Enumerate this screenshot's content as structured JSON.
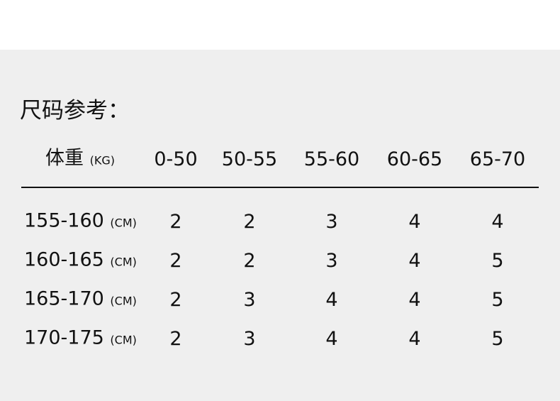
{
  "title": "尺码参考：",
  "header": {
    "label": "体重",
    "unit": "(KG)",
    "columns": [
      "0-50",
      "50-55",
      "55-60",
      "60-65",
      "65-70"
    ]
  },
  "row_unit": "(CM)",
  "rows": [
    {
      "height": "155-160",
      "sizes": [
        "2",
        "2",
        "3",
        "4",
        "4"
      ]
    },
    {
      "height": "160-165",
      "sizes": [
        "2",
        "2",
        "3",
        "4",
        "5"
      ]
    },
    {
      "height": "165-170",
      "sizes": [
        "2",
        "3",
        "4",
        "4",
        "5"
      ]
    },
    {
      "height": "170-175",
      "sizes": [
        "2",
        "3",
        "4",
        "4",
        "5"
      ]
    }
  ]
}
